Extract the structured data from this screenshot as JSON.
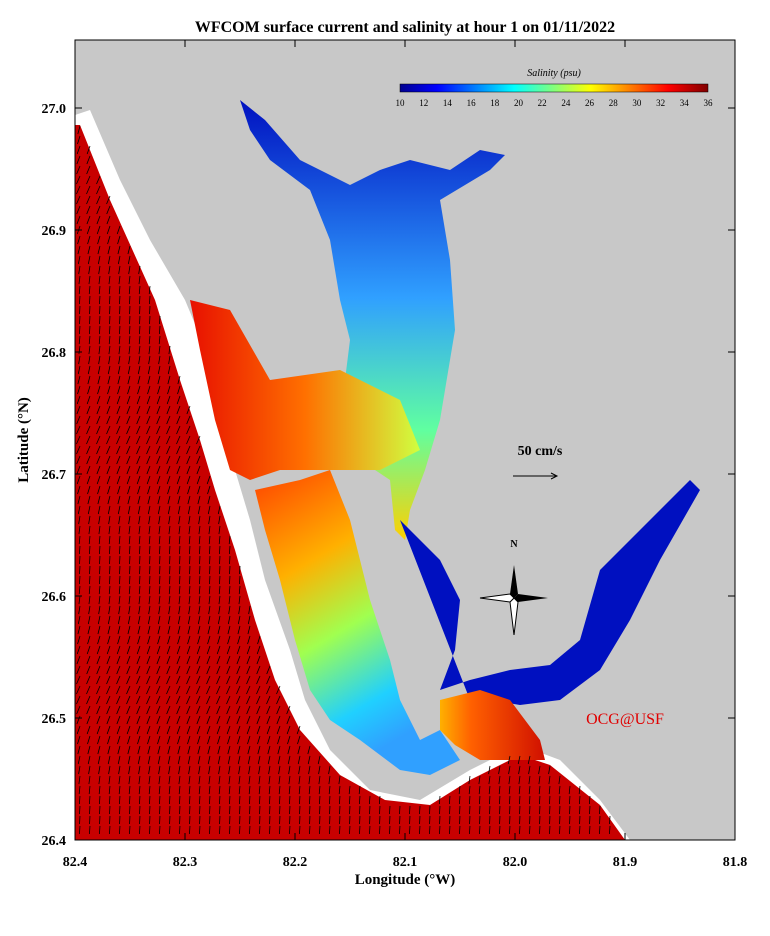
{
  "title": "WFCOM surface current and salinity at hour 1 on 01/11/2022",
  "x_axis": {
    "label": "Longitude (°W)",
    "ticks": [
      "82.4",
      "82.3",
      "82.2",
      "82.1",
      "82.0",
      "81.9",
      "81.8"
    ]
  },
  "y_axis": {
    "label": "Latitude (°N)",
    "ticks": [
      "26.4",
      "26.5",
      "26.6",
      "26.7",
      "26.8",
      "26.9",
      "27.0"
    ]
  },
  "colorbar": {
    "label": "Salinity (psu)",
    "ticks": [
      "10",
      "12",
      "14",
      "16",
      "18",
      "20",
      "22",
      "24",
      "26",
      "28",
      "30",
      "32",
      "34",
      "36"
    ]
  },
  "scale_label": "50 cm/s",
  "compass_label": "N",
  "credit": "OCG@USF"
}
